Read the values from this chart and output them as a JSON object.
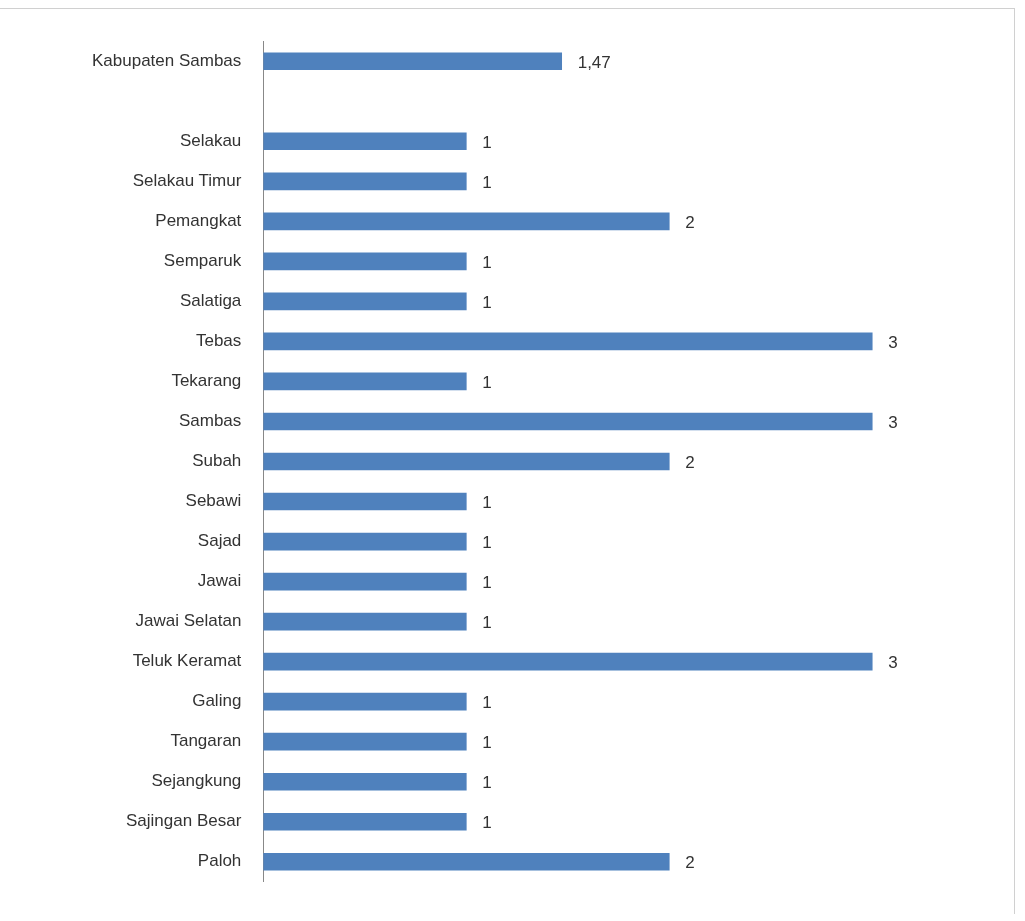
{
  "chart_data": {
    "type": "bar",
    "orientation": "horizontal",
    "categories": [
      "Kabupaten Sambas",
      null,
      "Selakau",
      "Selakau Timur",
      "Pemangkat",
      "Semparuk",
      "Salatiga",
      "Tebas",
      "Tekarang",
      "Sambas",
      "Subah",
      "Sebawi",
      "Sajad",
      "Jawai",
      "Jawai Selatan",
      "Teluk Keramat",
      "Galing",
      "Tangaran",
      "Sejangkung",
      "Sajingan Besar",
      "Paloh"
    ],
    "values": [
      1.47,
      null,
      1,
      1,
      2,
      1,
      1,
      3,
      1,
      3,
      2,
      1,
      1,
      1,
      1,
      3,
      1,
      1,
      1,
      1,
      2
    ],
    "value_labels": [
      "1,47",
      null,
      "1",
      "1",
      "2",
      "1",
      "1",
      "3",
      "1",
      "3",
      "2",
      "1",
      "1",
      "1",
      "1",
      "3",
      "1",
      "1",
      "1",
      "1",
      "2"
    ],
    "color": "#4f81bd",
    "grid": false,
    "legend": false
  }
}
